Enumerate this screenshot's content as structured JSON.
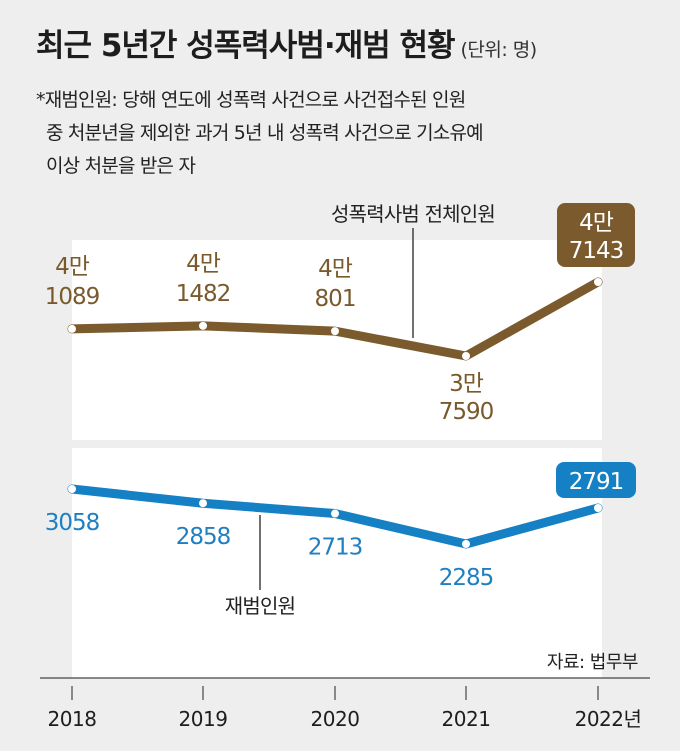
{
  "title": "최근 5년간 성폭력사범·재범 현황",
  "unit": "(단위: 명)",
  "note_lines": [
    "*재범인원: 당해 연도에 성폭력 사건으로 사건접수된 인원",
    "중 처분년을 제외한 과거 5년 내 성폭력 사건으로 기소유예",
    "이상 처분을 받은 자"
  ],
  "source": "자료: 법무부",
  "chart_data": {
    "type": "line",
    "categories": [
      "2018",
      "2019",
      "2020",
      "2021",
      "2022년"
    ],
    "series": [
      {
        "name": "성폭력사범 전체인원",
        "values": [
          41089,
          41482,
          40801,
          37590,
          47143
        ],
        "labels": [
          [
            "4만",
            "1089"
          ],
          [
            "4만",
            "1482"
          ],
          [
            "4만",
            "801"
          ],
          [
            "3만",
            "7590"
          ],
          [
            "4만",
            "7143"
          ]
        ],
        "color": "#7b5b2d"
      },
      {
        "name": "재범인원",
        "values": [
          3058,
          2858,
          2713,
          2285,
          2791
        ],
        "labels": [
          "3058",
          "2858",
          "2713",
          "2285",
          "2791"
        ],
        "color": "#1680c4"
      }
    ],
    "background_color": "#ffffff",
    "axis_color": "#444444"
  }
}
